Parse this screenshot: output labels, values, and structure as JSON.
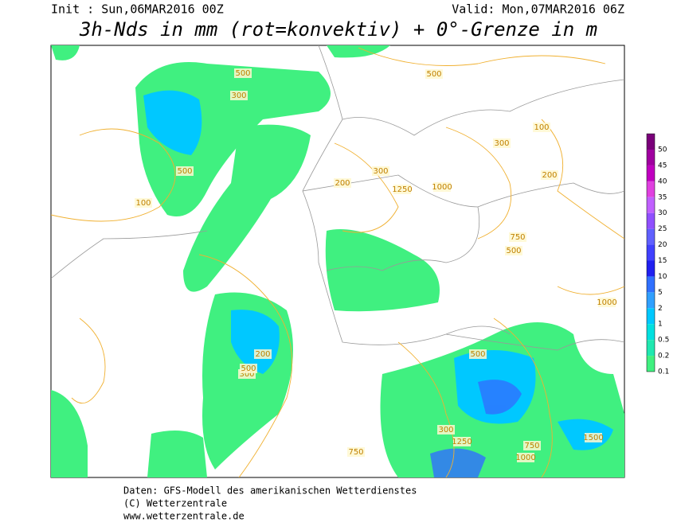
{
  "header": {
    "init": "Init : Sun,06MAR2016 00Z",
    "valid": "Valid: Mon,07MAR2016 06Z",
    "title": "3h-Nds in mm (rot=konvektiv) + 0°-Grenze in m"
  },
  "colorbar": {
    "levels": [
      50,
      45,
      40,
      35,
      30,
      25,
      20,
      15,
      10,
      5,
      2,
      1,
      0.5,
      0.2,
      0.1
    ],
    "colors": [
      "#7a007a",
      "#a000a0",
      "#c000c0",
      "#e040e0",
      "#c060ff",
      "#9050ff",
      "#6060ff",
      "#4040ff",
      "#2020f0",
      "#3070ff",
      "#30a0ff",
      "#00c8ff",
      "#00e0e0",
      "#20e8b0",
      "#40f080"
    ]
  },
  "map_labels": [
    "500",
    "300",
    "100",
    "200",
    "500",
    "300",
    "750",
    "500",
    "1000",
    "1250",
    "300",
    "500",
    "200",
    "750",
    "1000",
    "1250",
    "1500",
    "500",
    "100",
    "300",
    "200",
    "500",
    "1000",
    "750",
    "300"
  ],
  "footer": {
    "line1": "Daten: GFS-Modell des amerikanischen Wetterdienstes",
    "line2": "(C) Wetterzentrale",
    "line3": "www.wetterzentrale.de"
  }
}
